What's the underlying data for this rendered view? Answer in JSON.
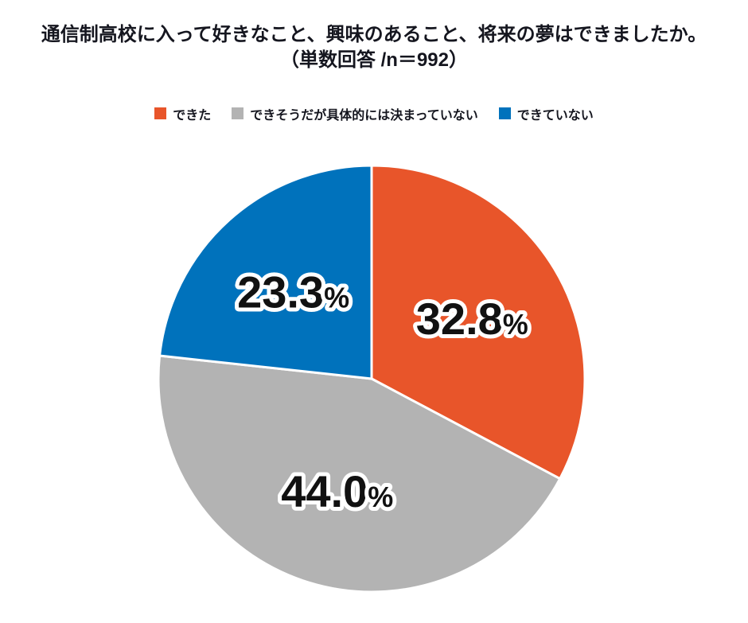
{
  "title": {
    "line1": "通信制高校に入って好きなこと、興味のあること、将来の夢はできましたか。",
    "line2": "（単数回答 /n＝992）"
  },
  "chart_data": {
    "type": "pie",
    "title": "通信制高校に入って好きなこと、興味のあること、将来の夢はできましたか。（単数回答 /n＝992）",
    "labels": [
      "できた",
      "できそうだが具体的には決まっていない",
      "できていない"
    ],
    "values": [
      32.8,
      44.0,
      23.3
    ],
    "colors": [
      "#e8552a",
      "#b3b3b3",
      "#0072bc"
    ],
    "value_suffix": "%",
    "start_angle_deg": 0,
    "direction": "clockwise",
    "legend_position": "top",
    "slice_border_color": "#ffffff",
    "label_color": "#111111",
    "label_outline_color": "#ffffff"
  }
}
